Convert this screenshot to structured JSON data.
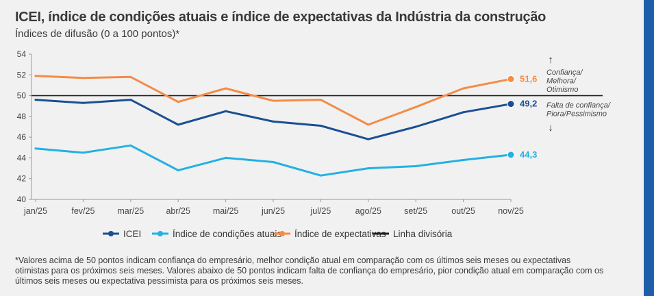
{
  "header": {
    "title": "ICEI, índice de condições atuais e índice de expectativas da Indústria da construção",
    "subtitle": "Índices de difusão (0 a 100 pontos)*"
  },
  "chart_data": {
    "type": "line",
    "categories": [
      "jan/25",
      "fev/25",
      "mar/25",
      "abr/25",
      "mai/25",
      "jun/25",
      "jul/25",
      "ago/25",
      "set/25",
      "out/25",
      "nov/25"
    ],
    "series": [
      {
        "name": "ICEI",
        "color": "#1a4f93",
        "values": [
          49.6,
          49.3,
          49.6,
          47.2,
          48.5,
          47.5,
          47.1,
          45.8,
          47.0,
          48.4,
          49.2
        ],
        "end_label": "49,2"
      },
      {
        "name": "Índice de condições atuais",
        "color": "#22b1e4",
        "values": [
          44.9,
          44.5,
          45.2,
          42.8,
          44.0,
          43.6,
          42.3,
          43.0,
          43.2,
          43.8,
          44.3
        ],
        "end_label": "44,3"
      },
      {
        "name": "Índice de expectativas",
        "color": "#f58b45",
        "values": [
          51.9,
          51.7,
          51.8,
          49.4,
          50.7,
          49.5,
          49.6,
          47.2,
          48.9,
          50.7,
          51.6
        ],
        "end_label": "51,6"
      }
    ],
    "divider": {
      "name": "Linha divisória",
      "value": 50,
      "color": "#222222"
    },
    "ylim": [
      40,
      54
    ],
    "yticks": [
      "40",
      "42",
      "44",
      "46",
      "48",
      "50",
      "52",
      "54"
    ],
    "annotation_up": {
      "arrow": "↑",
      "lines": [
        "Confiança/",
        "Melhora/",
        "Otimismo"
      ]
    },
    "annotation_down": {
      "arrow": "↓",
      "lines": [
        "Falta de confiança/",
        "Piora/Pessimismo"
      ]
    }
  },
  "footnote": "*Valores acima de 50 pontos indicam confiança do empresário, melhor condição atual em comparação com os últimos seis meses ou expectativas otimistas para os próximos seis meses. Valores abaixo de 50 pontos indicam falta de confiança do empresário, pior condição atual em comparação com os últimos seis meses ou expectativa pessimista para os próximos seis meses."
}
